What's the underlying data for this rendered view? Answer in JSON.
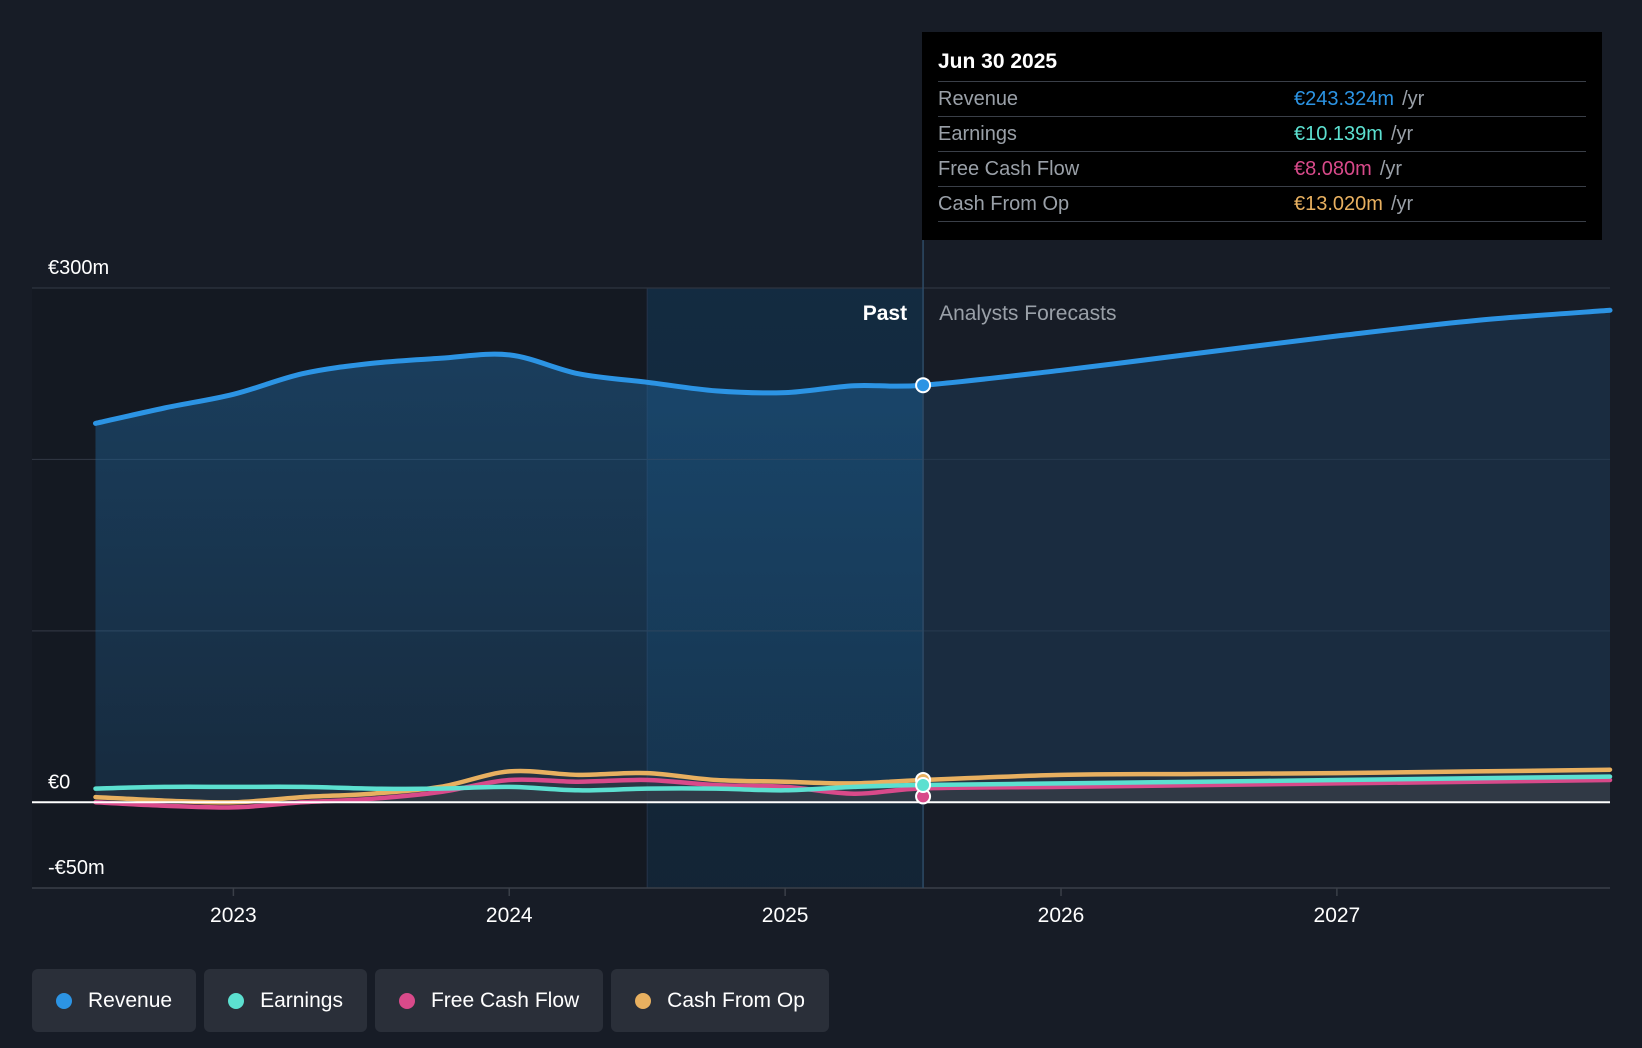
{
  "chart_data": {
    "type": "line",
    "x_label_ticks": [
      "2023",
      "2024",
      "2025",
      "2026",
      "2027"
    ],
    "x_ticks": [
      2023,
      2024,
      2025,
      2026,
      2027
    ],
    "y_tick_labels": [
      "€300m",
      "€0",
      "-€50m"
    ],
    "y_ticks": [
      300,
      0,
      -50
    ],
    "ylim": [
      -50,
      300
    ],
    "xlim": [
      2022.27,
      2027.99
    ],
    "gridlines_y": [
      200,
      100
    ],
    "past_label": "Past",
    "forecast_label": "Analysts Forecasts",
    "past_end_x": 2025.5,
    "highlight_start_x": 2024.5,
    "series": [
      {
        "name": "Revenue",
        "color": "#2c94e4",
        "x": [
          2022.5,
          2022.75,
          2023.0,
          2023.25,
          2023.5,
          2023.75,
          2024.0,
          2024.25,
          2024.5,
          2024.75,
          2025.0,
          2025.25,
          2025.5,
          2026.0,
          2026.5,
          2027.0,
          2027.5,
          2027.99
        ],
        "y": [
          221,
          230,
          238,
          250,
          256,
          259,
          261,
          250,
          245,
          240,
          239,
          243,
          243.3,
          252,
          262,
          272,
          281,
          287
        ]
      },
      {
        "name": "Earnings",
        "color": "#5ce0d0",
        "x": [
          2022.5,
          2022.75,
          2023.0,
          2023.25,
          2023.5,
          2023.75,
          2024.0,
          2024.25,
          2024.5,
          2024.75,
          2025.0,
          2025.25,
          2025.5,
          2026.0,
          2026.5,
          2027.0,
          2027.5,
          2027.99
        ],
        "y": [
          8,
          9,
          9,
          9,
          8,
          8,
          9,
          7,
          8,
          8,
          7,
          9,
          10.1,
          11,
          12,
          13,
          14,
          15
        ]
      },
      {
        "name": "Free Cash Flow",
        "color": "#d84a8a",
        "x": [
          2022.5,
          2022.75,
          2023.0,
          2023.25,
          2023.5,
          2023.75,
          2024.0,
          2024.25,
          2024.5,
          2024.75,
          2025.0,
          2025.25,
          2025.5,
          2026.0,
          2026.5,
          2027.0,
          2027.5,
          2027.99
        ],
        "y": [
          0,
          -2,
          -3,
          0,
          2,
          6,
          13,
          12,
          13,
          10,
          9,
          5,
          8.08,
          9,
          10,
          11,
          12,
          13
        ]
      },
      {
        "name": "Cash From Op",
        "color": "#e8b060",
        "x": [
          2022.5,
          2022.75,
          2023.0,
          2023.25,
          2023.5,
          2023.75,
          2024.0,
          2024.25,
          2024.5,
          2024.75,
          2025.0,
          2025.25,
          2025.5,
          2026.0,
          2026.5,
          2027.0,
          2027.5,
          2027.99
        ],
        "y": [
          3,
          1,
          0,
          3,
          5,
          9,
          18,
          16,
          17,
          13,
          12,
          11,
          13.02,
          16,
          16.5,
          17,
          18,
          19
        ]
      }
    ]
  },
  "tooltip": {
    "date": "Jun 30 2025",
    "rows": [
      {
        "label": "Revenue",
        "value": "€243.324m",
        "unit": "/yr",
        "color": "#2c94e4"
      },
      {
        "label": "Earnings",
        "value": "€10.139m",
        "unit": "/yr",
        "color": "#5ce0d0"
      },
      {
        "label": "Free Cash Flow",
        "value": "€8.080m",
        "unit": "/yr",
        "color": "#d84a8a"
      },
      {
        "label": "Cash From Op",
        "value": "€13.020m",
        "unit": "/yr",
        "color": "#e8b060"
      }
    ]
  },
  "legend": [
    {
      "label": "Revenue",
      "color": "#2c94e4"
    },
    {
      "label": "Earnings",
      "color": "#5ce0d0"
    },
    {
      "label": "Free Cash Flow",
      "color": "#d84a8a"
    },
    {
      "label": "Cash From Op",
      "color": "#e8b060"
    }
  ]
}
